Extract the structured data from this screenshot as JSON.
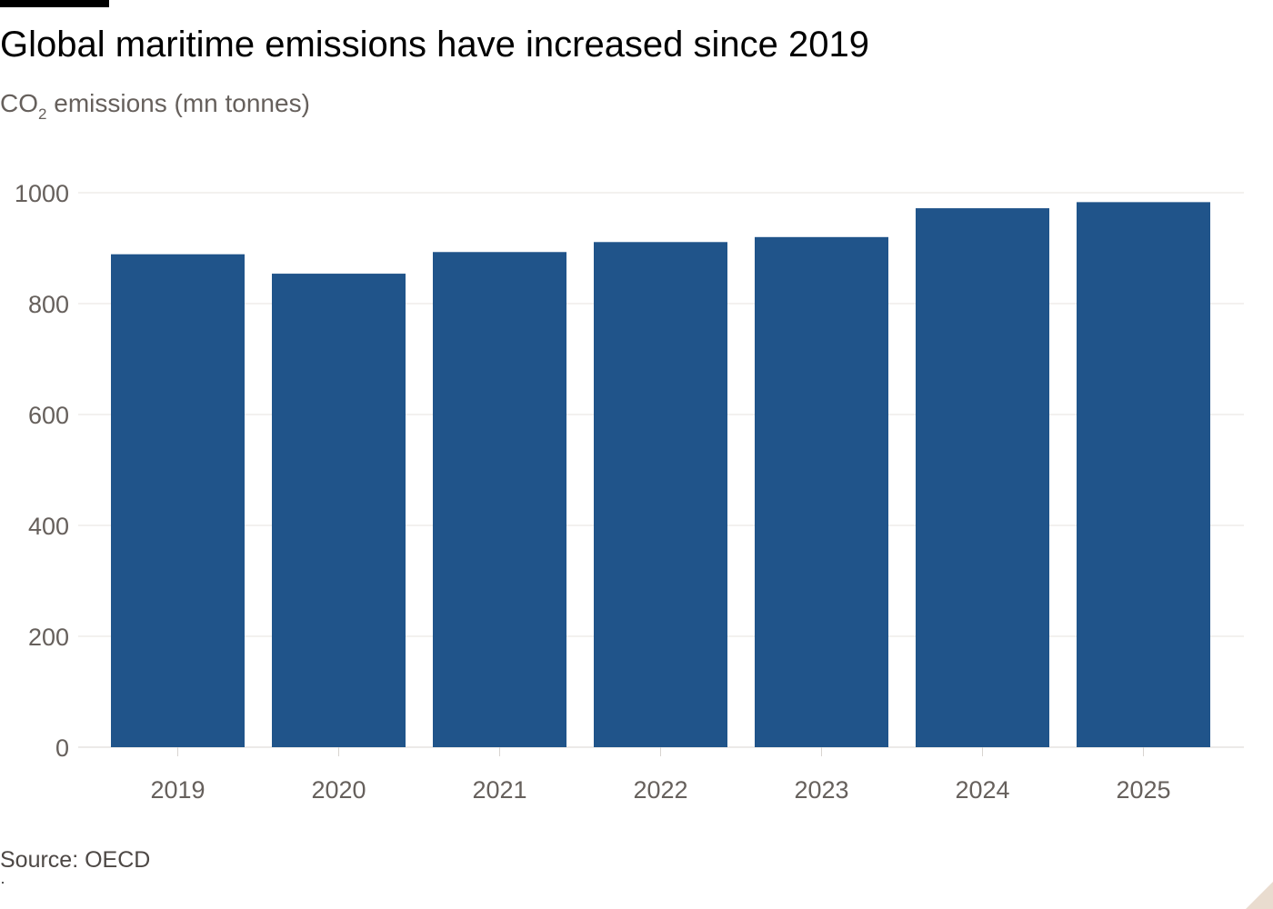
{
  "title": "Global maritime emissions have increased since 2019",
  "subtitle": {
    "prefix": "CO",
    "subscript": "2",
    "suffix": " emissions (mn tonnes)"
  },
  "source": "Source: OECD",
  "colors": {
    "bar": "#20548a",
    "grid": "#e7e3df",
    "axis_text": "#66605c",
    "baseline": "#d8d4d0"
  },
  "chart_data": {
    "type": "bar",
    "title": "Global maritime emissions have increased since 2019",
    "xlabel": "",
    "ylabel": "CO2 emissions (mn tonnes)",
    "categories": [
      "2019",
      "2020",
      "2021",
      "2022",
      "2023",
      "2024",
      "2025"
    ],
    "values": [
      889,
      854,
      893,
      911,
      920,
      972,
      983
    ],
    "ylim": [
      0,
      1000
    ],
    "yticks": [
      0,
      200,
      400,
      600,
      800,
      1000
    ],
    "grid": true,
    "legend": "none"
  }
}
